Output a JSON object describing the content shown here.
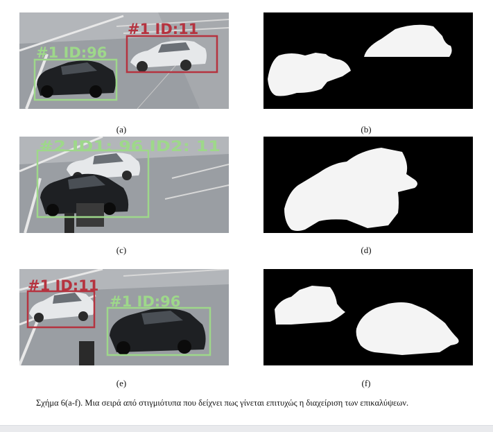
{
  "figure": {
    "caption": "Σχήμα 6(a-f). Μια σειρά από στιγμιότυπα που δείχνει πως γίνεται επιτυχώς η διαχείριση των επικαλύψεων.",
    "panels": [
      {
        "label": "(a)",
        "kind": "video-frame",
        "boxes": [
          {
            "text": "#1 ID:11",
            "color": "#b5333f"
          },
          {
            "text": "#1 ID:96",
            "color": "#9ed88a"
          }
        ]
      },
      {
        "label": "(b)",
        "kind": "foreground-mask"
      },
      {
        "label": "(c)",
        "kind": "video-frame",
        "boxes": [
          {
            "text": "#2 ID1: 96 ID2: 11",
            "color": "#9ed88a"
          }
        ]
      },
      {
        "label": "(d)",
        "kind": "foreground-mask"
      },
      {
        "label": "(e)",
        "kind": "video-frame",
        "boxes": [
          {
            "text": "#1 ID:11",
            "color": "#b5333f"
          },
          {
            "text": "#1 ID:96",
            "color": "#9ed88a"
          }
        ]
      },
      {
        "label": "(f)",
        "kind": "foreground-mask"
      }
    ]
  },
  "colors": {
    "red_box": "#b5333f",
    "green_box": "#9ed88a",
    "mask_bg": "#000000",
    "mask_fg": "#f4f4f4",
    "road": "#9a9ea3"
  }
}
